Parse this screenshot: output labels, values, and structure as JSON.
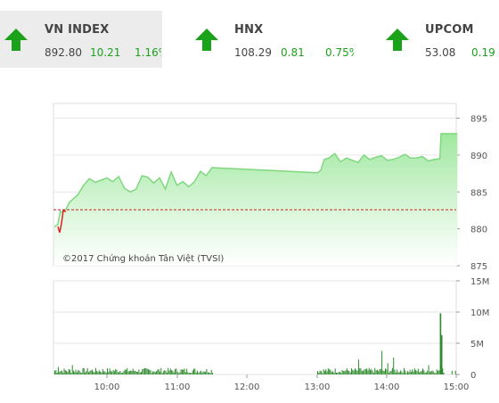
{
  "indices": [
    {
      "name": "VN INDEX",
      "value": "892.80",
      "change": "10.21",
      "percent": "1.16%",
      "direction": "up",
      "active": true
    },
    {
      "name": "HNX",
      "value": "108.29",
      "change": "0.81",
      "percent": "0.75%",
      "direction": "up",
      "active": false
    },
    {
      "name": "UPCOM",
      "value": "53.08",
      "change": "0.19",
      "percent": "",
      "direction": "up",
      "active": false
    }
  ],
  "colors": {
    "up": "#1ba21b",
    "down": "#dd2222",
    "area": "#9fe89f",
    "line": "#7fd87f",
    "reference": "#cc2222",
    "volume": "#2e8b2e"
  },
  "chart_data": [
    {
      "type": "area",
      "watermark": "©2017 Chứng khoán Tân Việt (TVSI)",
      "reference_value": 882.59,
      "ylim": [
        875,
        897
      ],
      "yticks": [
        875,
        880,
        885,
        890,
        895
      ],
      "x_ticks": [
        "10:00",
        "11:00",
        "12:00",
        "13:00",
        "14:00",
        "15:00"
      ],
      "grid": true,
      "series": [
        {
          "values_x": [
            "09:15",
            "09:18",
            "09:20",
            "09:22",
            "09:25",
            "09:28",
            "09:30",
            "09:35",
            "09:40",
            "09:45",
            "09:50",
            "09:55",
            "10:00",
            "10:05",
            "10:10",
            "10:15",
            "10:20",
            "10:25",
            "10:30",
            "10:35",
            "10:40",
            "10:45",
            "10:50",
            "10:55",
            "11:00",
            "11:05",
            "11:10",
            "11:15",
            "11:20",
            "11:25",
            "11:30",
            "13:00",
            "13:03",
            "13:06",
            "13:10",
            "13:15",
            "13:20",
            "13:25",
            "13:30",
            "13:35",
            "13:40",
            "13:45",
            "13:50",
            "13:55",
            "14:00",
            "14:05",
            "14:10",
            "14:15",
            "14:20",
            "14:25",
            "14:30",
            "14:35",
            "14:40",
            "14:45",
            "14:46",
            "14:50",
            "14:55",
            "15:00"
          ],
          "values": [
            880.3,
            880.6,
            882.4,
            882.2,
            882.7,
            883.6,
            883.9,
            884.6,
            885.9,
            886.8,
            886.3,
            886.6,
            886.9,
            886.4,
            887.1,
            885.5,
            885.0,
            885.4,
            887.2,
            887.0,
            886.2,
            886.9,
            885.4,
            887.7,
            885.9,
            886.4,
            885.7,
            886.4,
            887.8,
            887.2,
            888.3,
            887.6,
            887.9,
            889.4,
            889.6,
            890.2,
            889.1,
            889.6,
            889.3,
            889.0,
            890.0,
            889.4,
            889.7,
            889.9,
            889.3,
            889.4,
            889.7,
            890.1,
            889.6,
            889.6,
            889.8,
            889.2,
            889.4,
            889.5,
            892.9,
            892.9,
            892.9,
            892.9
          ]
        }
      ],
      "opening_dip": [
        880.3,
        879.5,
        880.7,
        882.5,
        882.3
      ]
    },
    {
      "type": "bar",
      "ylim": [
        0,
        15
      ],
      "yticks": [
        "0",
        "5M",
        "10M",
        "15M"
      ],
      "x_ticks": [
        "10:00",
        "11:00",
        "12:00",
        "13:00",
        "14:00",
        "15:00"
      ],
      "morning_start": "09:15",
      "morning_end": "11:30",
      "afternoon_start": "13:00",
      "afternoon_end": "15:00",
      "typical_volume": 0.7,
      "spikes": [
        {
          "time": "09:18",
          "value": 1.2
        },
        {
          "time": "09:30",
          "value": 1.5
        },
        {
          "time": "13:35",
          "value": 2.4
        },
        {
          "time": "13:55",
          "value": 3.8
        },
        {
          "time": "14:00",
          "value": 1.8
        },
        {
          "time": "14:05",
          "value": 2.7
        },
        {
          "time": "14:35",
          "value": 1.5
        },
        {
          "time": "14:45",
          "value": 9.8
        },
        {
          "time": "14:46",
          "value": 6.3
        }
      ]
    }
  ]
}
